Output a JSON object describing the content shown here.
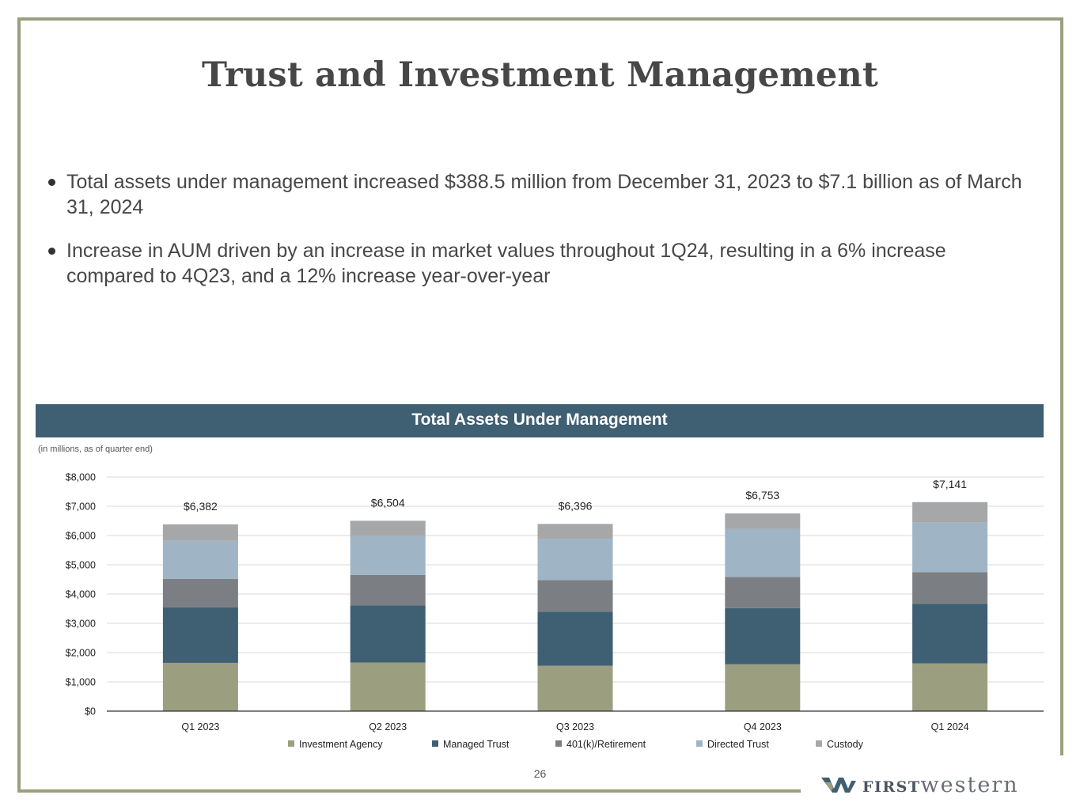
{
  "slide": {
    "title": "Trust and Investment Management",
    "bullets": [
      "Total assets under management increased $388.5 million from December 31, 2023 to $7.1 billion as of March 31, 2024",
      "Increase in AUM driven by an increase in market values throughout 1Q24, resulting in a 6% increase compared to 4Q23, and a 12% increase year-over-year"
    ],
    "page_number": "26",
    "logo": {
      "first": "FIRST",
      "western": "western"
    }
  },
  "chart_data": {
    "type": "bar",
    "stacked": true,
    "title": "Total Assets Under Management",
    "subtitle": "(in millions, as of quarter end)",
    "categories": [
      "Q1 2023",
      "Q2 2023",
      "Q3 2023",
      "Q4 2023",
      "Q1 2024"
    ],
    "totals": [
      6382,
      6504,
      6396,
      6753,
      7141
    ],
    "total_labels": [
      "$6,382",
      "$6,504",
      "$6,396",
      "$6,753",
      "$7,141"
    ],
    "series": [
      {
        "name": "Investment Agency",
        "color": "#9b9f80",
        "values": [
          1650,
          1660,
          1550,
          1600,
          1630
        ]
      },
      {
        "name": "Managed Trust",
        "color": "#3f5f73",
        "values": [
          1900,
          1950,
          1850,
          1920,
          2040
        ]
      },
      {
        "name": "401(k)/Retirement",
        "color": "#7b7f83",
        "values": [
          970,
          1040,
          1080,
          1060,
          1080
        ]
      },
      {
        "name": "Directed Trust",
        "color": "#9fb4c5",
        "values": [
          1300,
          1330,
          1410,
          1640,
          1690
        ]
      },
      {
        "name": "Custody",
        "color": "#a5a7a9",
        "values": [
          562,
          524,
          506,
          533,
          701
        ]
      }
    ],
    "yticks": [
      "$0",
      "$1,000",
      "$2,000",
      "$3,000",
      "$4,000",
      "$5,000",
      "$6,000",
      "$7,000",
      "$8,000"
    ],
    "ylim": [
      0,
      8000
    ],
    "legend_position": "bottom",
    "grid": true
  }
}
